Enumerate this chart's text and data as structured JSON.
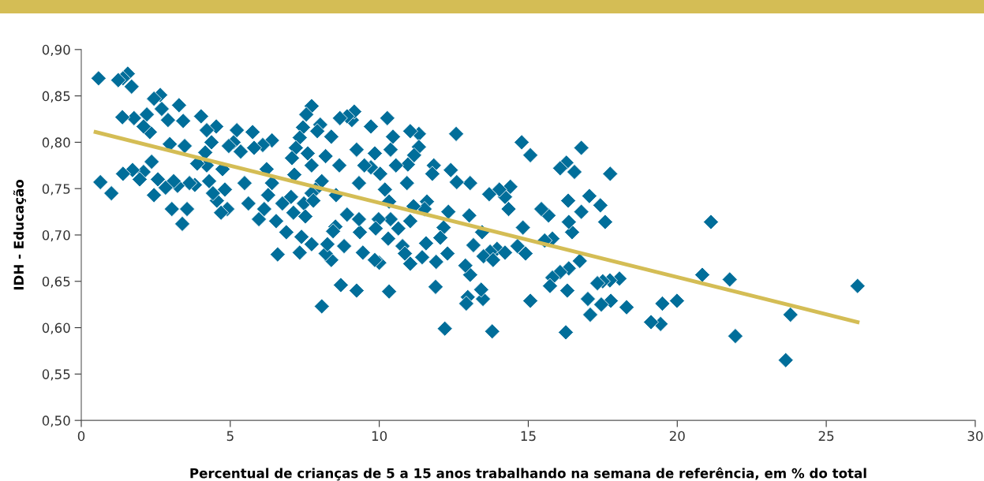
{
  "chart_data": {
    "type": "scatter",
    "xlabel": "Percentual de crianças de 5 a 15 anos trabalhando na semana de referência, em % do total",
    "ylabel": "IDH - Educação",
    "xlim": [
      0,
      30
    ],
    "xticks": [
      0,
      5,
      10,
      15,
      20,
      25,
      30
    ],
    "ylim": [
      0.5,
      0.9
    ],
    "yticks": [
      {
        "value": 0.5,
        "label": "0,50"
      },
      {
        "value": 0.55,
        "label": "0,55"
      },
      {
        "value": 0.6,
        "label": "0,60"
      },
      {
        "value": 0.65,
        "label": "0,65"
      },
      {
        "value": 0.7,
        "label": "0,70"
      },
      {
        "value": 0.75,
        "label": "0,75"
      },
      {
        "value": 0.8,
        "label": "0,80"
      },
      {
        "value": 0.85,
        "label": "0,85"
      },
      {
        "value": 0.9,
        "label": "0,90"
      }
    ],
    "grid": false,
    "series": [
      {
        "marker": "diamond",
        "color": "#006e9a",
        "x": [
          26.05,
          23.8,
          23.64,
          21.95,
          21.76,
          21.13,
          20.84,
          19.99,
          19.5,
          19.44,
          19.12,
          18.3,
          18.06,
          17.75,
          17.58,
          17.42,
          17.74,
          17.5,
          17.32,
          17.77,
          17.45,
          17.08,
          17.0,
          17.05,
          16.78,
          16.78,
          16.73,
          16.55,
          16.28,
          16.07,
          16.47,
          16.34,
          16.36,
          16.36,
          16.07,
          16.31,
          16.26,
          15.81,
          15.73,
          15.81,
          15.68,
          15.55,
          15.44,
          15.07,
          14.78,
          15.07,
          14.91,
          14.82,
          14.64,
          14.4,
          14.34,
          14.22,
          14.03,
          13.69,
          13.95,
          13.72,
          13.5,
          13.16,
          13.45,
          13.79,
          13.48,
          13.42,
          13.05,
          12.97,
          12.92,
          12.89,
          13.02,
          13.05,
          12.6,
          12.58,
          12.4,
          12.32,
          12.16,
          12.05,
          12.29,
          11.91,
          11.89,
          12.2,
          11.83,
          11.78,
          11.6,
          11.52,
          11.57,
          11.44,
          11.33,
          11.33,
          11.17,
          11.04,
          10.96,
          10.93,
          11.15,
          11.04,
          10.78,
          11.04,
          10.86,
          10.64,
          10.38,
          10.33,
          10.19,
          10.46,
          10.56,
          10.27,
          10.38,
          10.3,
          10.33,
          10.0,
          9.85,
          9.98,
          9.88,
          9.72,
          9.85,
          10.03,
          9.72,
          9.5,
          9.32,
          9.24,
          9.08,
          9.16,
          8.92,
          8.68,
          9.45,
          9.24,
          9.35,
          9.32,
          8.92,
          8.82,
          8.71,
          8.53,
          8.45,
          8.39,
          8.2,
          8.26,
          8.07,
          8.55,
          8.66,
          8.39,
          8.2,
          8.02,
          7.92,
          7.73,
          7.55,
          7.44,
          8.07,
          7.86,
          7.73,
          7.6,
          7.33,
          7.2,
          7.07,
          7.15,
          7.04,
          7.47,
          7.73,
          7.79,
          7.52,
          7.73,
          7.33,
          7.39,
          7.12,
          6.88,
          6.75,
          6.59,
          6.54,
          6.27,
          6.4,
          6.14,
          5.96,
          6.4,
          6.09,
          6.22,
          5.75,
          5.8,
          5.61,
          5.48,
          5.22,
          5.35,
          5.11,
          4.95,
          4.82,
          4.74,
          4.9,
          4.69,
          4.55,
          4.42,
          4.29,
          4.21,
          4.53,
          4.21,
          4.37,
          4.16,
          4.02,
          3.89,
          3.81,
          3.63,
          3.55,
          3.39,
          3.47,
          3.42,
          3.28,
          3.23,
          3.1,
          3.04,
          2.97,
          2.91,
          2.7,
          2.65,
          2.44,
          2.83,
          2.57,
          2.44,
          2.36,
          2.3,
          2.2,
          2.09,
          2.09,
          1.96,
          1.77,
          1.72,
          1.4,
          1.38,
          1.69,
          1.56,
          1.4,
          1.24,
          1.01,
          0.64,
          0.58,
          14.22,
          13.82
        ],
        "values": [
          0.645,
          0.614,
          0.565,
          0.591,
          0.652,
          0.714,
          0.657,
          0.629,
          0.626,
          0.604,
          0.606,
          0.622,
          0.653,
          0.766,
          0.714,
          0.732,
          0.651,
          0.65,
          0.648,
          0.629,
          0.625,
          0.614,
          0.631,
          0.742,
          0.794,
          0.725,
          0.672,
          0.768,
          0.778,
          0.772,
          0.703,
          0.737,
          0.714,
          0.664,
          0.66,
          0.64,
          0.595,
          0.654,
          0.645,
          0.696,
          0.721,
          0.694,
          0.728,
          0.786,
          0.8,
          0.629,
          0.68,
          0.708,
          0.688,
          0.752,
          0.728,
          0.741,
          0.749,
          0.744,
          0.685,
          0.682,
          0.677,
          0.689,
          0.703,
          0.596,
          0.631,
          0.641,
          0.657,
          0.633,
          0.626,
          0.667,
          0.721,
          0.756,
          0.757,
          0.809,
          0.77,
          0.725,
          0.708,
          0.697,
          0.68,
          0.671,
          0.644,
          0.599,
          0.775,
          0.766,
          0.736,
          0.728,
          0.691,
          0.676,
          0.809,
          0.795,
          0.786,
          0.812,
          0.776,
          0.756,
          0.731,
          0.715,
          0.688,
          0.669,
          0.68,
          0.707,
          0.717,
          0.736,
          0.749,
          0.806,
          0.775,
          0.826,
          0.792,
          0.696,
          0.639,
          0.67,
          0.673,
          0.717,
          0.707,
          0.817,
          0.788,
          0.766,
          0.773,
          0.775,
          0.756,
          0.792,
          0.824,
          0.833,
          0.828,
          0.826,
          0.681,
          0.64,
          0.703,
          0.717,
          0.722,
          0.688,
          0.646,
          0.709,
          0.704,
          0.673,
          0.68,
          0.69,
          0.623,
          0.743,
          0.775,
          0.806,
          0.785,
          0.819,
          0.812,
          0.839,
          0.83,
          0.816,
          0.758,
          0.749,
          0.775,
          0.788,
          0.805,
          0.794,
          0.783,
          0.765,
          0.741,
          0.734,
          0.745,
          0.737,
          0.72,
          0.69,
          0.681,
          0.698,
          0.724,
          0.703,
          0.734,
          0.679,
          0.715,
          0.743,
          0.756,
          0.728,
          0.717,
          0.802,
          0.797,
          0.771,
          0.811,
          0.794,
          0.734,
          0.756,
          0.813,
          0.79,
          0.8,
          0.796,
          0.749,
          0.771,
          0.728,
          0.724,
          0.737,
          0.745,
          0.758,
          0.775,
          0.817,
          0.813,
          0.8,
          0.789,
          0.828,
          0.777,
          0.754,
          0.756,
          0.728,
          0.712,
          0.796,
          0.823,
          0.84,
          0.753,
          0.758,
          0.728,
          0.798,
          0.824,
          0.836,
          0.851,
          0.847,
          0.751,
          0.76,
          0.743,
          0.779,
          0.811,
          0.83,
          0.817,
          0.768,
          0.76,
          0.826,
          0.77,
          0.766,
          0.827,
          0.86,
          0.874,
          0.869,
          0.867,
          0.745,
          0.757,
          0.869,
          0.681,
          0.673
        ]
      },
      {
        "type": "line",
        "marker": "none",
        "color": "#d4bd55",
        "x": [
          0.48,
          26.05
        ],
        "values": [
          0.811,
          0.606
        ]
      }
    ]
  }
}
